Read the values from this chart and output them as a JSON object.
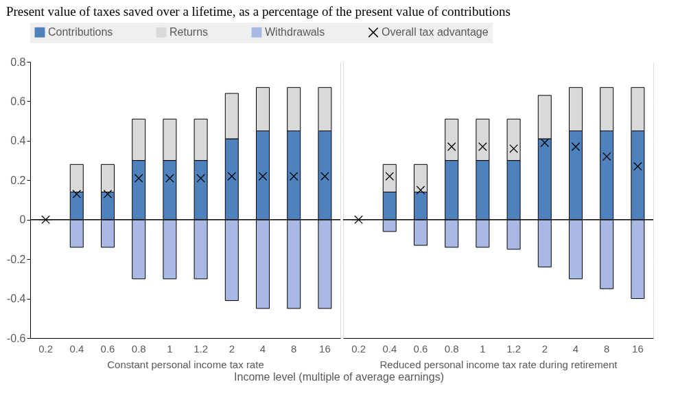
{
  "chart_data": [
    {
      "type": "bar",
      "title": "Present value of taxes saved over a lifetime, as a percentage of the present value of contributions",
      "xlabel": "Constant personal income tax rate",
      "annotations": [
        "Income level (multiple of average earnings)"
      ],
      "categories": [
        "0.2",
        "0.4",
        "0.6",
        "0.8",
        "1",
        "1.2",
        "2",
        "4",
        "8",
        "16"
      ],
      "stacked": true,
      "ylim": [
        -0.6,
        0.8
      ],
      "yticks": [
        {
          "value": -0.6,
          "label": "-0.6"
        },
        {
          "value": -0.4,
          "label": "-0.4"
        },
        {
          "value": -0.2,
          "label": "-0.2"
        },
        0,
        0.2,
        0.4,
        0.6,
        0.8
      ],
      "grid": true,
      "legend": "top",
      "ref_lines": [
        {
          "axis": "y",
          "value": 0,
          "color": "#000000"
        }
      ],
      "series": [
        {
          "name": "Contributions",
          "color": "#4f81bd",
          "values": [
            0,
            0.14,
            0.14,
            0.3,
            0.3,
            0.3,
            0.41,
            0.45,
            0.45,
            0.45
          ]
        },
        {
          "name": "Returns",
          "color": "#d9d9d9",
          "values": [
            0,
            0.14,
            0.14,
            0.21,
            0.21,
            0.21,
            0.23,
            0.22,
            0.22,
            0.22
          ]
        },
        {
          "name": "Withdrawals",
          "color": "#a9b9e3",
          "values": [
            0,
            -0.14,
            -0.14,
            -0.3,
            -0.3,
            -0.3,
            -0.41,
            -0.45,
            -0.45,
            -0.45
          ]
        },
        {
          "name": "Overall tax advantage",
          "type": "scatter",
          "marker": "cross",
          "color": "#000000",
          "values": [
            0,
            0.13,
            0.13,
            0.21,
            0.21,
            0.21,
            0.22,
            0.22,
            0.22,
            0.22
          ]
        }
      ]
    },
    {
      "type": "bar",
      "xlabel": "Reduced personal income tax rate during retirement",
      "tick_labels": "x",
      "categories": [
        "0.2",
        "0.4",
        "0.6",
        "0.8",
        "1",
        "1.2",
        "2",
        "4",
        "8",
        "16"
      ],
      "stacked": true,
      "ylim": [
        -0.6,
        0.8
      ],
      "yticks": [
        -0.6,
        -0.4,
        -0.2,
        0,
        0.2,
        0.4,
        0.6,
        0.8
      ],
      "grid": true,
      "legend": "top",
      "ref_lines": [
        {
          "axis": "y",
          "value": 0,
          "color": "#000000"
        }
      ],
      "series": [
        {
          "name": "Contributions",
          "color": "#4f81bd",
          "values": [
            0,
            0.14,
            0.14,
            0.3,
            0.3,
            0.3,
            0.41,
            0.45,
            0.45,
            0.45
          ]
        },
        {
          "name": "Returns",
          "color": "#d9d9d9",
          "values": [
            0,
            0.14,
            0.14,
            0.21,
            0.21,
            0.21,
            0.22,
            0.22,
            0.22,
            0.22
          ]
        },
        {
          "name": "Withdrawals",
          "color": "#a9b9e3",
          "values": [
            0,
            -0.06,
            -0.13,
            -0.14,
            -0.14,
            -0.15,
            -0.24,
            -0.3,
            -0.35,
            -0.4
          ]
        },
        {
          "name": "Overall tax advantage",
          "type": "scatter",
          "marker": "cross",
          "color": "#000000",
          "values": [
            0,
            0.22,
            0.15,
            0.37,
            0.37,
            0.36,
            0.39,
            0.37,
            0.32,
            0.27
          ]
        }
      ]
    }
  ]
}
